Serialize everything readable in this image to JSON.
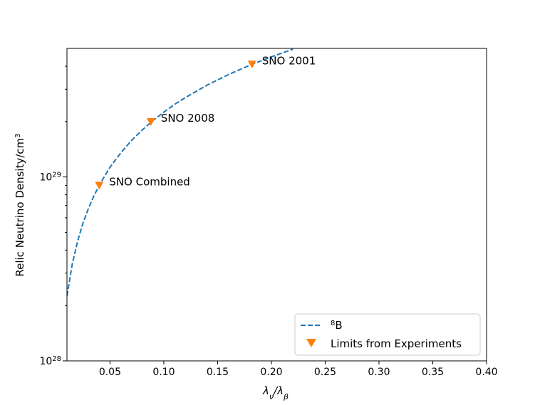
{
  "chart_data": {
    "type": "line",
    "title": "",
    "xlabel_base": "λ",
    "xlabel_sub1": "ν",
    "xlabel_sep": "/λ",
    "xlabel_sub2": "β",
    "ylabel_main": "Relic Neutrino Density/cm",
    "ylabel_sup": "3",
    "xlim": [
      0.01,
      0.4
    ],
    "ylim": [
      1e+28,
      5e+29
    ],
    "yscale": "log",
    "x_ticks": [
      0.05,
      0.1,
      0.15,
      0.2,
      0.25,
      0.3,
      0.35,
      0.4
    ],
    "x_tick_labels": [
      "0.05",
      "0.10",
      "0.15",
      "0.20",
      "0.25",
      "0.30",
      "0.35",
      "0.40"
    ],
    "y_major_ticks": [
      {
        "value": 1e+28,
        "base": "10",
        "exp": "28"
      },
      {
        "value": 1e+29,
        "base": "10",
        "exp": "29"
      }
    ],
    "y_minor_ticks": [
      2e+28,
      3e+28,
      4e+28,
      5e+28,
      6e+28,
      7e+28,
      8e+28,
      9e+28,
      2e+29,
      3e+29,
      4e+29
    ],
    "series": [
      {
        "name": "8B",
        "legend_sup": "8",
        "legend_base": "B",
        "style": "dashed",
        "color": "#1f77b4",
        "x": [
          0.01,
          0.015,
          0.02,
          0.025,
          0.03,
          0.035,
          0.04,
          0.045,
          0.05,
          0.06,
          0.07,
          0.08,
          0.09,
          0.1,
          0.11,
          0.12,
          0.14,
          0.16,
          0.18,
          0.2,
          0.22
        ],
        "y": [
          2.25e+28,
          3.38e+28,
          4.5e+28,
          5.63e+28,
          6.75e+28,
          7.88e+28,
          9e+28,
          1.01e+29,
          1.13e+29,
          1.35e+29,
          1.58e+29,
          1.8e+29,
          2.03e+29,
          2.25e+29,
          2.48e+29,
          2.7e+29,
          3.15e+29,
          3.6e+29,
          4.05e+29,
          4.5e+29,
          4.95e+29
        ]
      },
      {
        "name": "Limits from Experiments",
        "style": "marker-triangle-down",
        "color": "#ff7f0e",
        "x": [
          0.04,
          0.088,
          0.182
        ],
        "y": [
          9e+28,
          2e+29,
          4.1e+29
        ]
      }
    ],
    "annotations": [
      {
        "text": "SNO Combined",
        "x": 0.04,
        "y": 9e+28
      },
      {
        "text": "SNO 2008",
        "x": 0.088,
        "y": 2e+29
      },
      {
        "text": "SNO 2001",
        "x": 0.182,
        "y": 4.1e+29
      }
    ],
    "legend": {
      "position": "lower-right",
      "entries": [
        "8B",
        "Limits from Experiments"
      ],
      "entry_labels": {
        "limits": "Limits from Experiments"
      }
    },
    "grid": false
  }
}
